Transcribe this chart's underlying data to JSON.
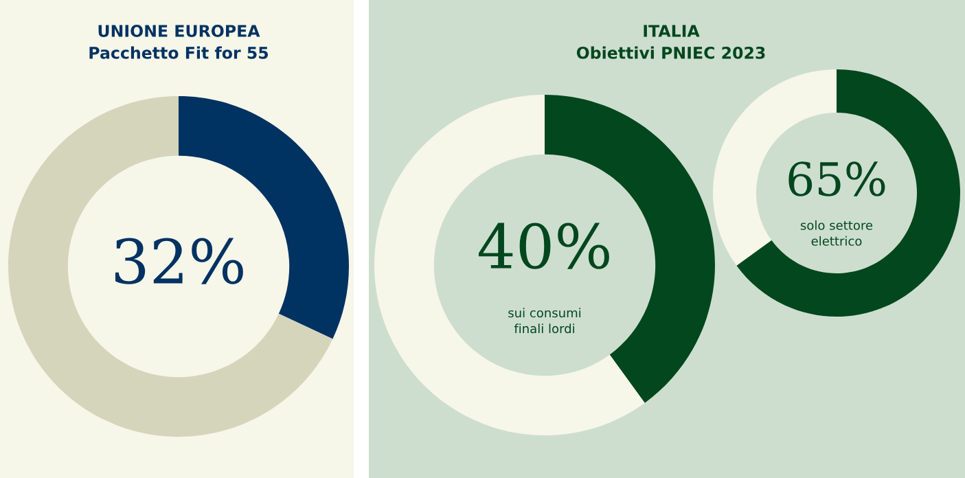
{
  "chart_data": [
    {
      "type": "donut",
      "title": "UNIONE EUROPEA\nPacchetto Fit for 55",
      "categories": [
        null,
        null
      ],
      "values": [
        32,
        68
      ],
      "colors": [
        "#003262",
        "#d5d5bc"
      ],
      "annotations": [
        "32%"
      ]
    },
    {
      "type": "donut",
      "title": "ITALIA\nObiettivi PNIEC 2023",
      "categories": [
        null,
        null
      ],
      "values": [
        40,
        60
      ],
      "colors": [
        "#02471e",
        "#f6f6e9"
      ],
      "annotations": [
        "40%",
        "sui consumi\nfinali lordi"
      ]
    },
    {
      "type": "donut",
      "categories": [
        null,
        null
      ],
      "values": [
        65,
        35
      ],
      "colors": [
        "#02471e",
        "#f6f6e9"
      ],
      "annotations": [
        "65%",
        "solo settore\nelettrico"
      ]
    }
  ]
}
